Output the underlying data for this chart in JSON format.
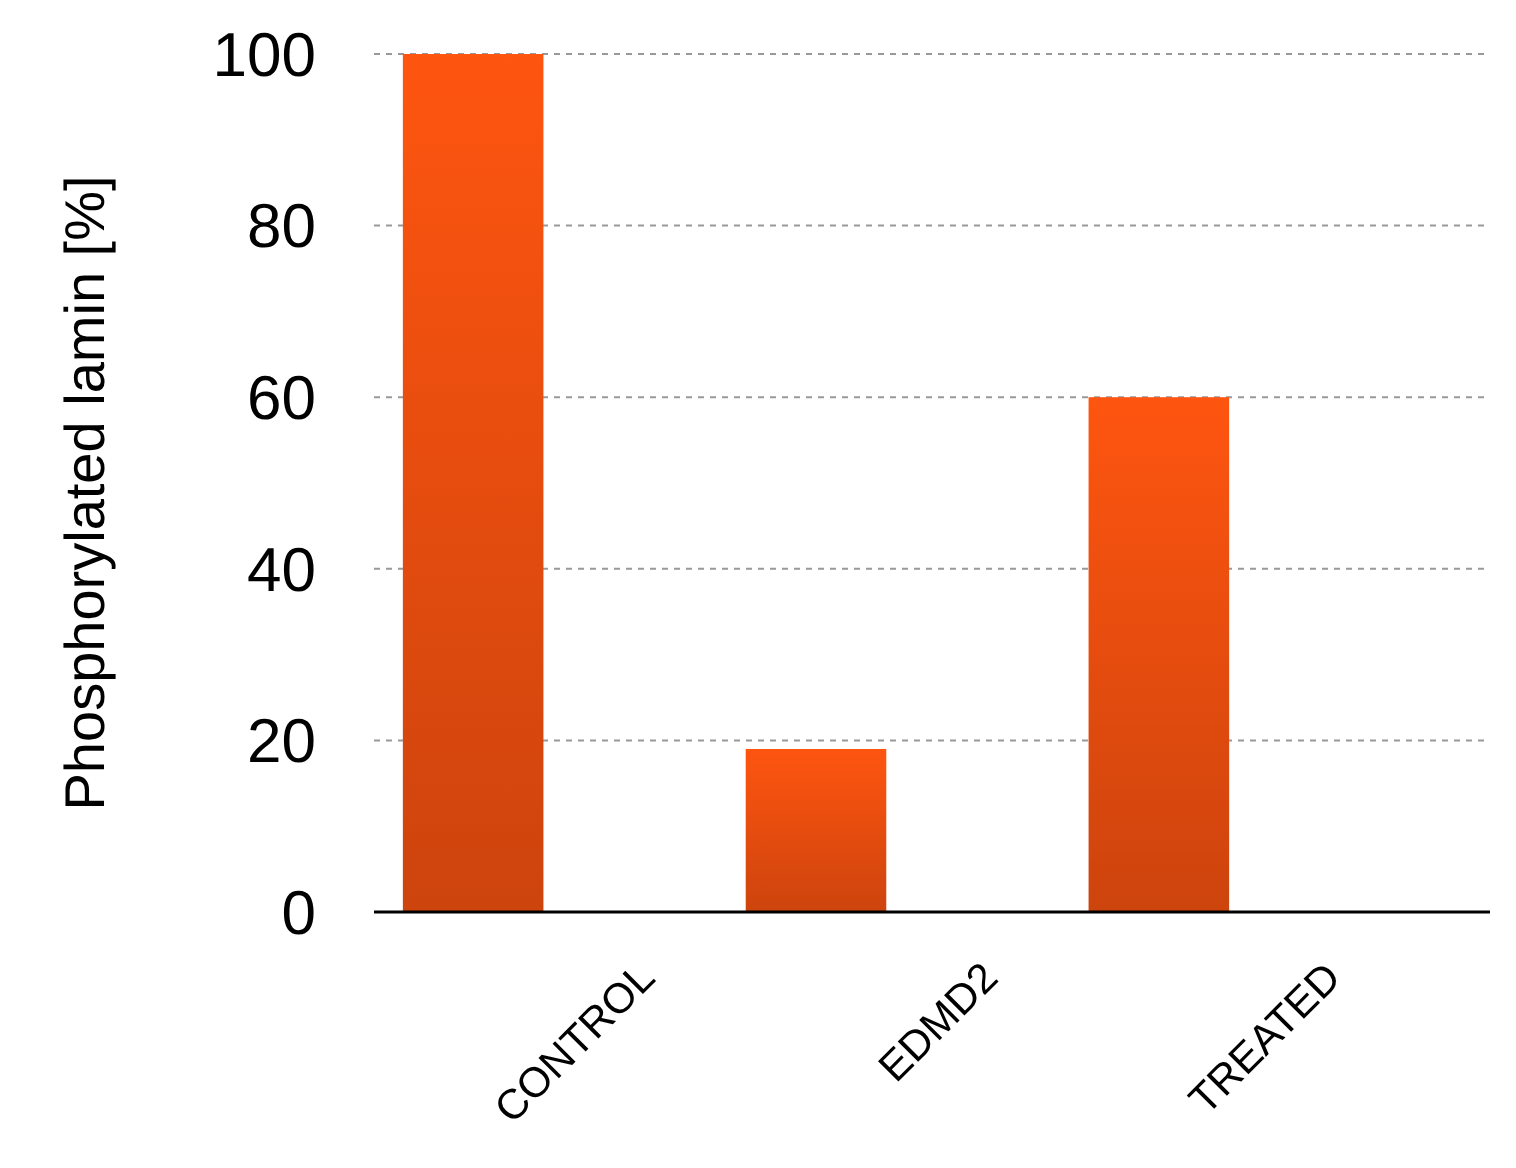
{
  "chart_data": {
    "type": "bar",
    "ylabel": "Phosphorylated lamin [%]",
    "categories": [
      "CONTROL",
      "EDMD2",
      "TREATED"
    ],
    "values": [
      100,
      19,
      60
    ],
    "color": "#d8480e",
    "ylim": [
      0,
      100
    ],
    "yticks": [
      0,
      20,
      40,
      60,
      80,
      100
    ],
    "grid": "y"
  }
}
